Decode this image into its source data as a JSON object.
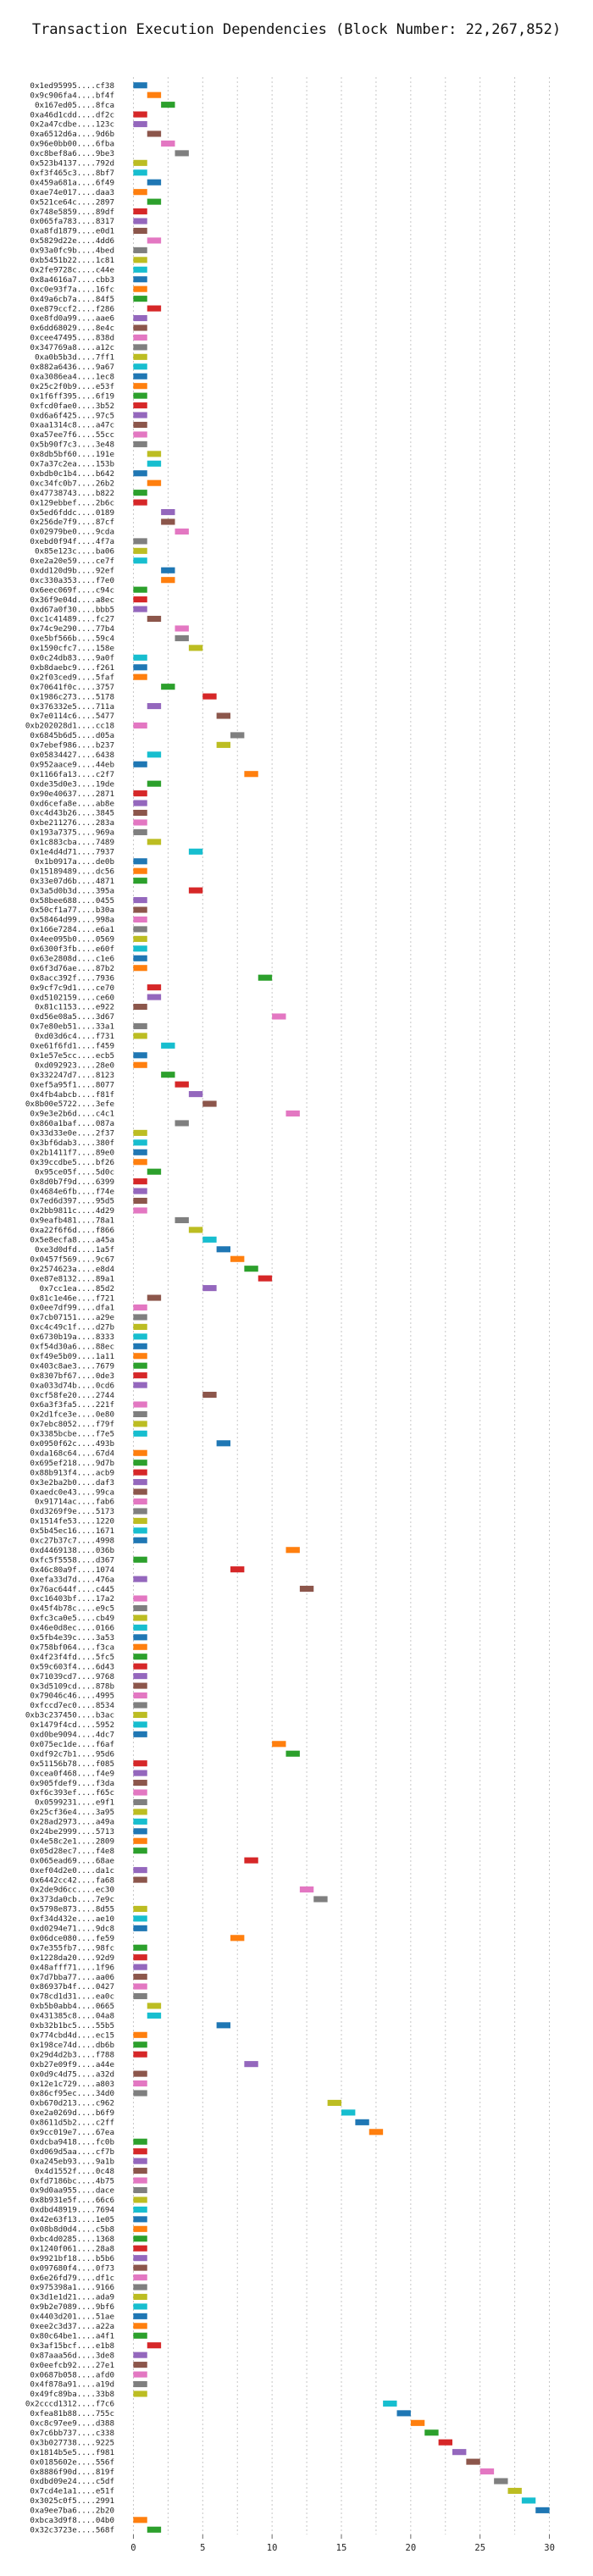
{
  "chart_data": {
    "type": "gantt",
    "title": "Transaction Execution Dependencies (Block Number: 22,267,852)",
    "xlabel": "",
    "ylabel": "",
    "xlim": [
      -1,
      31
    ],
    "xticks": [
      0,
      5,
      10,
      15,
      20,
      25,
      30
    ],
    "grid": true,
    "bar_duration": 1,
    "palette": [
      "#1f77b4",
      "#ff7f0e",
      "#2ca02c",
      "#d62728",
      "#9467bd",
      "#8c564b",
      "#e377c2",
      "#7f7f7f",
      "#bcbd22",
      "#17becf"
    ],
    "rows": [
      {
        "label": "0x1ed95995....cf38",
        "start": 0
      },
      {
        "label": "0x9c906fa4....bf4f",
        "start": 1
      },
      {
        "label": "0x167ed05....8fca",
        "start": 2
      },
      {
        "label": "0xa46d1cdd....df2c",
        "start": 0
      },
      {
        "label": "0x2a47cdbe....123c",
        "start": 0
      },
      {
        "label": "0xa6512d6a....9d6b",
        "start": 1
      },
      {
        "label": "0x96e0bb00....6fba",
        "start": 2
      },
      {
        "label": "0xc8bef8a6....9be3",
        "start": 3
      },
      {
        "label": "0x523b4137....792d",
        "start": 0
      },
      {
        "label": "0xf3f465c3....8bf7",
        "start": 0
      },
      {
        "label": "0x459a681a....6f49",
        "start": 1
      },
      {
        "label": "0xae74e017....daa3",
        "start": 0
      },
      {
        "label": "0x521ce64c....2897",
        "start": 1
      },
      {
        "label": "0x748e5859....89df",
        "start": 0
      },
      {
        "label": "0x065fa783....8317",
        "start": 0
      },
      {
        "label": "0xa8fd1879....e0d1",
        "start": 0
      },
      {
        "label": "0x5829d22e....4dd6",
        "start": 1
      },
      {
        "label": "0x93a0fc9b....4bed",
        "start": 0
      },
      {
        "label": "0xb5451b22....1c81",
        "start": 0
      },
      {
        "label": "0x2fe9728c....c44e",
        "start": 0
      },
      {
        "label": "0x8a4616a7....cbb3",
        "start": 0
      },
      {
        "label": "0xc0e93f7a....16fc",
        "start": 0
      },
      {
        "label": "0x49a6cb7a....84f5",
        "start": 0
      },
      {
        "label": "0xe879ccf2....f286",
        "start": 1
      },
      {
        "label": "0xe8fd0a99....aae6",
        "start": 0
      },
      {
        "label": "0x6dd68029....8e4c",
        "start": 0
      },
      {
        "label": "0xcee47495....838d",
        "start": 0
      },
      {
        "label": "0x347769a8....a12c",
        "start": 0
      },
      {
        "label": "0xa0b5b3d....7ff1",
        "start": 0
      },
      {
        "label": "0x882a6436....9a67",
        "start": 0
      },
      {
        "label": "0xa3086ea4....1ec8",
        "start": 0
      },
      {
        "label": "0x25c2f0b9....e53f",
        "start": 0
      },
      {
        "label": "0x1f6ff395....6f19",
        "start": 0
      },
      {
        "label": "0xfcd0fae0....3b52",
        "start": 0
      },
      {
        "label": "0xd6a6f425....97c5",
        "start": 0
      },
      {
        "label": "0xaa1314c8....a47c",
        "start": 0
      },
      {
        "label": "0xa57ee7f6....55cc",
        "start": 0
      },
      {
        "label": "0x5b90f7c3....3e48",
        "start": 0
      },
      {
        "label": "0x8db5bf60....191e",
        "start": 1
      },
      {
        "label": "0x7a37c2ea....153b",
        "start": 1
      },
      {
        "label": "0xbdb0c1b4....b642",
        "start": 0
      },
      {
        "label": "0xc34fc0b7....26b2",
        "start": 1
      },
      {
        "label": "0x47738743....b822",
        "start": 0
      },
      {
        "label": "0x129ebbef....2b6c",
        "start": 0
      },
      {
        "label": "0x5ed6fddc....0189",
        "start": 2
      },
      {
        "label": "0x256de7f9....87cf",
        "start": 2
      },
      {
        "label": "0x02979be0....9cda",
        "start": 3
      },
      {
        "label": "0xebd0f94f....4f7a",
        "start": 0
      },
      {
        "label": "0x85e123c....ba06",
        "start": 0
      },
      {
        "label": "0xe2a20e59....ce7f",
        "start": 0
      },
      {
        "label": "0xdd120d9b....92ef",
        "start": 2
      },
      {
        "label": "0xc330a353....f7e0",
        "start": 2
      },
      {
        "label": "0x6eec069f....c94c",
        "start": 0
      },
      {
        "label": "0x36f9e04d....a8ec",
        "start": 0
      },
      {
        "label": "0xd67a0f30....bbb5",
        "start": 0
      },
      {
        "label": "0xc1c41489....fc27",
        "start": 1
      },
      {
        "label": "0x74c9e290....77b4",
        "start": 3
      },
      {
        "label": "0xe5bf566b....59c4",
        "start": 3
      },
      {
        "label": "0x1590cfc7....158e",
        "start": 4
      },
      {
        "label": "0x0c24db83....9a0f",
        "start": 0
      },
      {
        "label": "0xb8daebc9....f261",
        "start": 0
      },
      {
        "label": "0x2f03ced9....5faf",
        "start": 0
      },
      {
        "label": "0x70641f0c....3757",
        "start": 2
      },
      {
        "label": "0x1986c273....5178",
        "start": 5
      },
      {
        "label": "0x376332e5....711a",
        "start": 1
      },
      {
        "label": "0x7e0114c6....5477",
        "start": 6
      },
      {
        "label": "0xb202028d1....cc18",
        "start": 0
      },
      {
        "label": "0x6845b6d5....d05a",
        "start": 7
      },
      {
        "label": "0x7ebef986....b237",
        "start": 6
      },
      {
        "label": "0x05834427....6438",
        "start": 1
      },
      {
        "label": "0x952aace9....44eb",
        "start": 0
      },
      {
        "label": "0x1166fa13....c2f7",
        "start": 8
      },
      {
        "label": "0xde35d0e3....19de",
        "start": 1
      },
      {
        "label": "0x90e40637....2871",
        "start": 0
      },
      {
        "label": "0xd6cefa8e....ab8e",
        "start": 0
      },
      {
        "label": "0xc4d43b26....3845",
        "start": 0
      },
      {
        "label": "0xbe211276....283a",
        "start": 0
      },
      {
        "label": "0x193a7375....969a",
        "start": 0
      },
      {
        "label": "0x1c883cba....7489",
        "start": 1
      },
      {
        "label": "0x1e4d4d71....7937",
        "start": 4
      },
      {
        "label": "0x1b0917a....de0b",
        "start": 0
      },
      {
        "label": "0x15189489....dc56",
        "start": 0
      },
      {
        "label": "0x33e07d6b....4871",
        "start": 0
      },
      {
        "label": "0x3a5d0b3d....395a",
        "start": 4
      },
      {
        "label": "0x58bee688....0455",
        "start": 0
      },
      {
        "label": "0x50cf1a77....b30a",
        "start": 0
      },
      {
        "label": "0x58464d99....998a",
        "start": 0
      },
      {
        "label": "0x166e7284....e6a1",
        "start": 0
      },
      {
        "label": "0x4ee095b0....0569",
        "start": 0
      },
      {
        "label": "0x6300f3fb....e60f",
        "start": 0
      },
      {
        "label": "0x63e2808d....c1e6",
        "start": 0
      },
      {
        "label": "0x6f3d76ae....87b2",
        "start": 0
      },
      {
        "label": "0x8acc392f....7936",
        "start": 9
      },
      {
        "label": "0x9cf7c9d1....ce70",
        "start": 1
      },
      {
        "label": "0xd5102159....ce60",
        "start": 1
      },
      {
        "label": "0x81c1153....e922",
        "start": 0
      },
      {
        "label": "0xd56e08a5....3d67",
        "start": 10
      },
      {
        "label": "0x7e80eb51....33a1",
        "start": 0
      },
      {
        "label": "0xd03d6c4....f731",
        "start": 0
      },
      {
        "label": "0xe61f6fd1....f459",
        "start": 2
      },
      {
        "label": "0x1e57e5cc....ecb5",
        "start": 0
      },
      {
        "label": "0xd092923....28e0",
        "start": 0
      },
      {
        "label": "0x332247d7....8123",
        "start": 2
      },
      {
        "label": "0xef5a95f1....8077",
        "start": 3
      },
      {
        "label": "0x4fb4abcb....f81f",
        "start": 4
      },
      {
        "label": "0x8b00e5722....3efe",
        "start": 5
      },
      {
        "label": "0x9e3e2b6d....c4c1",
        "start": 11
      },
      {
        "label": "0x860a1baf....087a",
        "start": 3
      },
      {
        "label": "0x33d33e0e....2f37",
        "start": 0
      },
      {
        "label": "0x3bf6dab3....380f",
        "start": 0
      },
      {
        "label": "0x2b1411f7....89e0",
        "start": 0
      },
      {
        "label": "0x39ccdbe5....bf26",
        "start": 0
      },
      {
        "label": "0x95ce05f....5d0c",
        "start": 1
      },
      {
        "label": "0x8d0b7f9d....6399",
        "start": 0
      },
      {
        "label": "0x4684e6fb....f74e",
        "start": 0
      },
      {
        "label": "0x7ed6d397....95d5",
        "start": 0
      },
      {
        "label": "0x2bb9811c....4d29",
        "start": 0
      },
      {
        "label": "0x9eafb481....78a1",
        "start": 3
      },
      {
        "label": "0xa22f6f6d....f866",
        "start": 4
      },
      {
        "label": "0x5e8ecfa8....a45a",
        "start": 5
      },
      {
        "label": "0xe3d0dfd....1a5f",
        "start": 6
      },
      {
        "label": "0x0457f569....9c67",
        "start": 7
      },
      {
        "label": "0x2574623a....e8d4",
        "start": 8
      },
      {
        "label": "0xe87e8132....89a1",
        "start": 9
      },
      {
        "label": "0x7cc1ea....85d2",
        "start": 5
      },
      {
        "label": "0x81c1e46e....f721",
        "start": 1
      },
      {
        "label": "0x0ee7df99....dfa1",
        "start": 0
      },
      {
        "label": "0x7cb07151....a29e",
        "start": 0
      },
      {
        "label": "0xc4c49c1f....d27b",
        "start": 0
      },
      {
        "label": "0x6730b19a....8333",
        "start": 0
      },
      {
        "label": "0xf54d30a6....88ec",
        "start": 0
      },
      {
        "label": "0xf49e5b09....1a11",
        "start": 0
      },
      {
        "label": "0x403c8ae3....7679",
        "start": 0
      },
      {
        "label": "0x8307bf67....0de3",
        "start": 0
      },
      {
        "label": "0xa033d74b....0cd6",
        "start": 0
      },
      {
        "label": "0xcf58fe20....2744",
        "start": 5
      },
      {
        "label": "0x6a3f3fa5....221f",
        "start": 0
      },
      {
        "label": "0x2d1fce3e....0e80",
        "start": 0
      },
      {
        "label": "0x7ebc8052....f79f",
        "start": 0
      },
      {
        "label": "0x3385bcbe....f7e5",
        "start": 0
      },
      {
        "label": "0x0950f62c....493b",
        "start": 6
      },
      {
        "label": "0xda168c64....67d4",
        "start": 0
      },
      {
        "label": "0x695ef218....9d7b",
        "start": 0
      },
      {
        "label": "0x88b913f4....acb9",
        "start": 0
      },
      {
        "label": "0x3e2ba2b0....daf3",
        "start": 0
      },
      {
        "label": "0xaedc0e43....99ca",
        "start": 0
      },
      {
        "label": "0x91714ac....fab6",
        "start": 0
      },
      {
        "label": "0xd3269f9e....5173",
        "start": 0
      },
      {
        "label": "0x1514fe53....1220",
        "start": 0
      },
      {
        "label": "0x5b45ec16....1671",
        "start": 0
      },
      {
        "label": "0xc27b37c7....4998",
        "start": 0
      },
      {
        "label": "0xd4469138....036b",
        "start": 11
      },
      {
        "label": "0xfc5f5558....d367",
        "start": 0
      },
      {
        "label": "0x46c80a9f....1074",
        "start": 7
      },
      {
        "label": "0xefa33d7d....476a",
        "start": 0
      },
      {
        "label": "0x76ac644f....c445",
        "start": 12
      },
      {
        "label": "0xc16403bf....17a2",
        "start": 0
      },
      {
        "label": "0x45f4b78c....e9c5",
        "start": 0
      },
      {
        "label": "0xfc3ca0e5....cb49",
        "start": 0
      },
      {
        "label": "0x46e0d8ec....0166",
        "start": 0
      },
      {
        "label": "0x5fb4e39c....3a53",
        "start": 0
      },
      {
        "label": "0x758bf064....f3ca",
        "start": 0
      },
      {
        "label": "0x4f23f4fd....5fc5",
        "start": 0
      },
      {
        "label": "0x59c603f4....6d43",
        "start": 0
      },
      {
        "label": "0x71039cd7....9768",
        "start": 0
      },
      {
        "label": "0x3d5109cd....878b",
        "start": 0
      },
      {
        "label": "0x79046c46....4995",
        "start": 0
      },
      {
        "label": "0xfccd7ec0....8534",
        "start": 0
      },
      {
        "label": "0xb3c237450....b3ac",
        "start": 0
      },
      {
        "label": "0x1479f4cd....5952",
        "start": 0
      },
      {
        "label": "0xd0be9094....4dc7",
        "start": 0
      },
      {
        "label": "0x075ec1de....f6af",
        "start": 10
      },
      {
        "label": "0xdf92c7b1....95d6",
        "start": 11
      },
      {
        "label": "0x51156b78....f085",
        "start": 0
      },
      {
        "label": "0xcea0f468....f4e9",
        "start": 0
      },
      {
        "label": "0x905fdef9....f3da",
        "start": 0
      },
      {
        "label": "0xf6c393ef....f65c",
        "start": 0
      },
      {
        "label": "0x0599231....e9f1",
        "start": 0
      },
      {
        "label": "0x25cf36e4....3a95",
        "start": 0
      },
      {
        "label": "0x28ad2973....a49a",
        "start": 0
      },
      {
        "label": "0x24be2999....5713",
        "start": 0
      },
      {
        "label": "0x4e58c2e1....2809",
        "start": 0
      },
      {
        "label": "0x05d28ec7....f4e8",
        "start": 0
      },
      {
        "label": "0x065ead69....68ae",
        "start": 8
      },
      {
        "label": "0xef04d2e0....da1c",
        "start": 0
      },
      {
        "label": "0x6442cc42....fa68",
        "start": 0
      },
      {
        "label": "0x2de9d6cc....ec30",
        "start": 12
      },
      {
        "label": "0x373da0cb....7e9c",
        "start": 13
      },
      {
        "label": "0x5798e873....8d55",
        "start": 0
      },
      {
        "label": "0xf34d432e....ae10",
        "start": 0
      },
      {
        "label": "0xd0294e71....9dc8",
        "start": 0
      },
      {
        "label": "0x06dce080....fe59",
        "start": 7
      },
      {
        "label": "0x7e355fb7....98fc",
        "start": 0
      },
      {
        "label": "0x1228da20....92d9",
        "start": 0
      },
      {
        "label": "0x48afff71....1f96",
        "start": 0
      },
      {
        "label": "0x7d7bba77....aa06",
        "start": 0
      },
      {
        "label": "0x86937b4f....0427",
        "start": 0
      },
      {
        "label": "0x78cd1d31....ea0c",
        "start": 0
      },
      {
        "label": "0xb5b0abb4....0665",
        "start": 1
      },
      {
        "label": "0x431385c8....04a8",
        "start": 1
      },
      {
        "label": "0xb32b1bc5....55b5",
        "start": 6
      },
      {
        "label": "0x774cbd4d....ec15",
        "start": 0
      },
      {
        "label": "0x198ce74d....db6b",
        "start": 0
      },
      {
        "label": "0x29d4d2b3....f788",
        "start": 0
      },
      {
        "label": "0xb27e09f9....a44e",
        "start": 8
      },
      {
        "label": "0x0d9c4d75....a32d",
        "start": 0
      },
      {
        "label": "0x12e1c729....a803",
        "start": 0
      },
      {
        "label": "0x86cf95ec....34d0",
        "start": 0
      },
      {
        "label": "0xb670d213....c962",
        "start": 14
      },
      {
        "label": "0xe2a0269d....b6f9",
        "start": 15
      },
      {
        "label": "0x8611d5b2....c2ff",
        "start": 16
      },
      {
        "label": "0x9cc019e7....67ea",
        "start": 17
      },
      {
        "label": "0xdcba9418....fc0b",
        "start": 0
      },
      {
        "label": "0xd069d5aa....cf7b",
        "start": 0
      },
      {
        "label": "0xa245eb93....9a1b",
        "start": 0
      },
      {
        "label": "0x4d1552f....0c48",
        "start": 0
      },
      {
        "label": "0xfd7186bc....4b75",
        "start": 0
      },
      {
        "label": "0x9d0aa955....dace",
        "start": 0
      },
      {
        "label": "0x8b931e5f....66c6",
        "start": 0
      },
      {
        "label": "0xdbd48919....7694",
        "start": 0
      },
      {
        "label": "0x42e63f13....1e05",
        "start": 0
      },
      {
        "label": "0x08b8d0d4....c5b8",
        "start": 0
      },
      {
        "label": "0xbc4d0285....1368",
        "start": 0
      },
      {
        "label": "0x1240f061....28a8",
        "start": 0
      },
      {
        "label": "0x9921bf18....b5b6",
        "start": 0
      },
      {
        "label": "0x097680f4....0f73",
        "start": 0
      },
      {
        "label": "0x6e26fd79....df1c",
        "start": 0
      },
      {
        "label": "0x975398a1....9166",
        "start": 0
      },
      {
        "label": "0x3d1e1d21....ada9",
        "start": 0
      },
      {
        "label": "0x9b2e7089....9bf6",
        "start": 0
      },
      {
        "label": "0x4403d201....51ae",
        "start": 0
      },
      {
        "label": "0xee2c3d37....a22a",
        "start": 0
      },
      {
        "label": "0x80c64be1....a4f1",
        "start": 0
      },
      {
        "label": "0x3af15bcf....e1b8",
        "start": 1
      },
      {
        "label": "0x87aaa56d....3de8",
        "start": 0
      },
      {
        "label": "0x0eefcb92....27e1",
        "start": 0
      },
      {
        "label": "0x0687b058....afd0",
        "start": 0
      },
      {
        "label": "0x4f878a91....a19d",
        "start": 0
      },
      {
        "label": "0x49fc89ba....33b8",
        "start": 0
      },
      {
        "label": "0x2cccd1312....f7c6",
        "start": 18
      },
      {
        "label": "0xfea81b88....755c",
        "start": 19
      },
      {
        "label": "0xc8c97ee9....d388",
        "start": 20
      },
      {
        "label": "0x7c6bb737....c338",
        "start": 21
      },
      {
        "label": "0x3b027738....9225",
        "start": 22
      },
      {
        "label": "0x1814b5e5....f981",
        "start": 23
      },
      {
        "label": "0x0185602e....556f",
        "start": 24
      },
      {
        "label": "0x8886f90d....819f",
        "start": 25
      },
      {
        "label": "0xdbd09e24....c5df",
        "start": 26
      },
      {
        "label": "0x7cd4e1a1....e51f",
        "start": 27
      },
      {
        "label": "0x3025c0f5....2991",
        "start": 28
      },
      {
        "label": "0xa9ee7ba6....2b20",
        "start": 29
      },
      {
        "label": "0xbca3d9f8....04b0",
        "start": 0
      },
      {
        "label": "0x32c3723e....568f",
        "start": 1
      }
    ]
  }
}
